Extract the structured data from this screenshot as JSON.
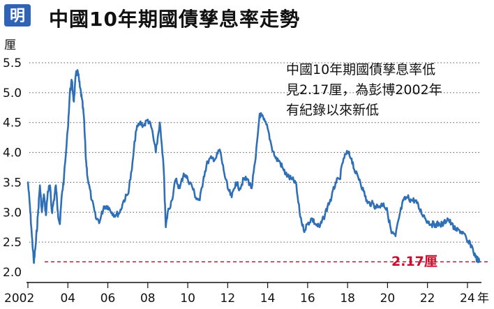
{
  "title": "中國10年期國債孳息率走勢",
  "logo": {
    "text": "明",
    "color": "#2e63b6"
  },
  "annotation_lines": [
    "中國10年期國債孳息率低",
    "見2.17厘，為彭博2002年",
    "有紀錄以來新低"
  ],
  "callout": "2.17厘",
  "colors": {
    "line": "#2e6fb6",
    "callout": "#c8102e",
    "grid": "#555555"
  },
  "chart_data": {
    "type": "line",
    "title": "中國10年期國債孳息率走勢",
    "ylabel": "厘",
    "xlabel": "年",
    "ylim": [
      2.0,
      5.5
    ],
    "yticks": [
      2.0,
      2.5,
      3.0,
      3.5,
      4.0,
      4.5,
      5.0,
      5.5
    ],
    "ytick_labels": [
      "2.0",
      "2.5",
      "3.0",
      "3.5",
      "4.0",
      "4.5",
      "5.0",
      "5.5"
    ],
    "xlim": [
      2002,
      2024.7
    ],
    "xticks": [
      2002,
      2004,
      2006,
      2008,
      2010,
      2012,
      2014,
      2016,
      2018,
      2020,
      2022,
      2024
    ],
    "xtick_labels": [
      "2002",
      "04",
      "06",
      "08",
      "10",
      "12",
      "14",
      "16",
      "18",
      "20",
      "22",
      "24"
    ],
    "grid": "horizontal dotted",
    "reference_line": {
      "y": 2.17,
      "style": "dashed",
      "label": "2.17厘"
    },
    "series": [
      {
        "x": [
          2002.0,
          2002.1,
          2002.2,
          2002.3,
          2002.4,
          2002.5,
          2002.6,
          2002.7,
          2002.8,
          2002.9,
          2003.0,
          2003.1,
          2003.2,
          2003.3,
          2003.4,
          2003.5,
          2003.6,
          2003.7,
          2003.8,
          2004.0,
          2004.1,
          2004.2,
          2004.3,
          2004.4,
          2004.5,
          2004.6,
          2004.7,
          2004.8,
          2004.9,
          2005.0,
          2005.2,
          2005.4,
          2005.6,
          2005.8,
          2006.0,
          2006.2,
          2006.4,
          2006.6,
          2006.8,
          2007.0,
          2007.2,
          2007.4,
          2007.6,
          2007.8,
          2008.0,
          2008.2,
          2008.4,
          2008.6,
          2008.8,
          2008.9,
          2009.0,
          2009.2,
          2009.4,
          2009.6,
          2009.8,
          2010.0,
          2010.2,
          2010.4,
          2010.6,
          2010.8,
          2011.0,
          2011.2,
          2011.4,
          2011.6,
          2011.8,
          2012.0,
          2012.2,
          2012.4,
          2012.6,
          2012.8,
          2013.0,
          2013.2,
          2013.4,
          2013.6,
          2013.8,
          2014.0,
          2014.2,
          2014.4,
          2014.6,
          2014.8,
          2015.0,
          2015.2,
          2015.4,
          2015.6,
          2015.8,
          2016.0,
          2016.2,
          2016.4,
          2016.6,
          2016.8,
          2017.0,
          2017.2,
          2017.4,
          2017.6,
          2017.8,
          2018.0,
          2018.2,
          2018.4,
          2018.6,
          2018.8,
          2019.0,
          2019.2,
          2019.4,
          2019.6,
          2019.8,
          2020.0,
          2020.2,
          2020.4,
          2020.6,
          2020.8,
          2021.0,
          2021.2,
          2021.4,
          2021.6,
          2021.8,
          2022.0,
          2022.2,
          2022.4,
          2022.6,
          2022.8,
          2023.0,
          2023.2,
          2023.4,
          2023.6,
          2023.8,
          2024.0,
          2024.2,
          2024.4,
          2024.6
        ],
        "y": [
          3.5,
          3.1,
          2.6,
          2.15,
          2.5,
          2.95,
          3.45,
          3.0,
          3.3,
          2.95,
          3.35,
          3.45,
          3.0,
          3.2,
          3.45,
          3.0,
          2.8,
          3.3,
          3.55,
          4.4,
          5.0,
          5.2,
          4.85,
          5.3,
          5.35,
          5.1,
          4.9,
          4.6,
          3.9,
          3.55,
          3.2,
          2.9,
          2.85,
          3.1,
          3.1,
          3.0,
          2.95,
          3.0,
          3.2,
          3.3,
          3.7,
          4.35,
          4.5,
          4.45,
          4.55,
          4.4,
          4.0,
          4.5,
          3.7,
          2.75,
          3.0,
          3.2,
          3.55,
          3.4,
          3.65,
          3.55,
          3.45,
          3.25,
          3.2,
          3.6,
          3.85,
          3.9,
          3.9,
          4.05,
          3.7,
          3.4,
          3.25,
          3.5,
          3.4,
          3.55,
          3.55,
          3.4,
          3.9,
          4.65,
          4.55,
          4.4,
          4.1,
          3.9,
          3.85,
          3.7,
          3.6,
          3.55,
          3.5,
          3.0,
          2.7,
          2.8,
          2.9,
          2.8,
          2.75,
          2.9,
          3.1,
          3.25,
          3.5,
          3.55,
          3.9,
          4.0,
          3.9,
          3.65,
          3.55,
          3.35,
          3.15,
          3.15,
          3.1,
          3.1,
          3.15,
          3.0,
          2.65,
          2.6,
          2.95,
          3.2,
          3.25,
          3.2,
          3.2,
          3.05,
          2.95,
          2.85,
          2.8,
          2.8,
          2.8,
          2.8,
          2.9,
          2.8,
          2.7,
          2.7,
          2.65,
          2.5,
          2.45,
          2.25,
          2.17
        ]
      }
    ]
  }
}
